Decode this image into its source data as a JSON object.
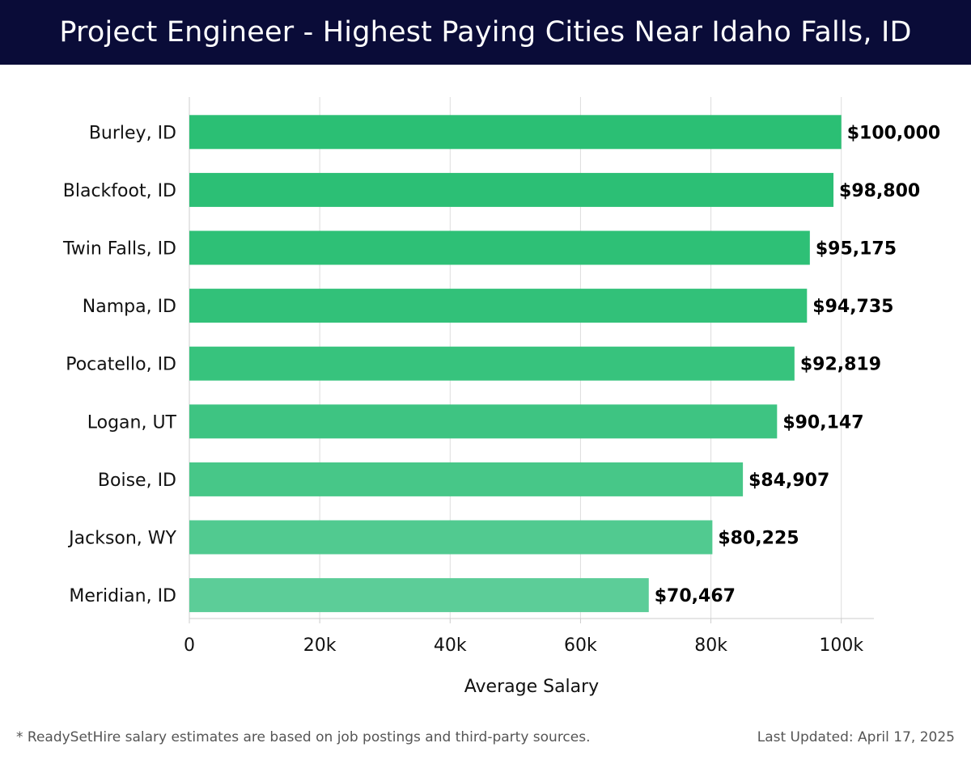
{
  "header": {
    "title": "Project Engineer - Highest Paying Cities Near Idaho Falls, ID"
  },
  "chart_data": {
    "type": "bar",
    "orientation": "horizontal",
    "categories": [
      "Burley, ID",
      "Blackfoot, ID",
      "Twin Falls, ID",
      "Nampa, ID",
      "Pocatello, ID",
      "Logan, UT",
      "Boise, ID",
      "Jackson, WY",
      "Meridian, ID"
    ],
    "values": [
      100000,
      98800,
      95175,
      94735,
      92819,
      90147,
      84907,
      80225,
      70467
    ],
    "data_labels": [
      "$100,000",
      "$98,800",
      "$95,175",
      "$94,735",
      "$92,819",
      "$90,147",
      "$84,907",
      "$80,225",
      "$70,467"
    ],
    "xlabel": "Average Salary",
    "ylabel": "",
    "xlim": [
      0,
      105000
    ],
    "xticks": [
      0,
      20000,
      40000,
      60000,
      80000,
      100000
    ],
    "xtick_labels": [
      "0",
      "20k",
      "40k",
      "60k",
      "80k",
      "100k"
    ],
    "grid": "vertical",
    "colors": {
      "bar_top": "#2bbf74",
      "bar_bottom": "#5ccd98",
      "grid": "#dddddd",
      "axis": "#cccccc",
      "label": "#111111",
      "value_label": "#000000"
    }
  },
  "footer": {
    "note": "* ReadySetHire salary estimates are based on job postings and third-party sources.",
    "updated": "Last Updated: April 17, 2025"
  }
}
